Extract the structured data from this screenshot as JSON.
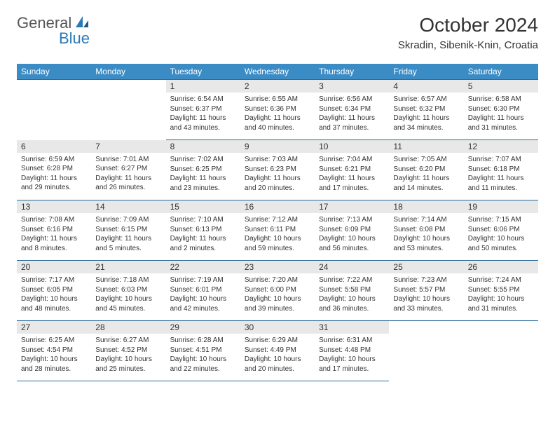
{
  "logo": {
    "text1": "General",
    "text2": "Blue"
  },
  "title": "October 2024",
  "location": "Skradin, Sibenik-Knin, Croatia",
  "colors": {
    "header_bg": "#3b8bc4",
    "header_text": "#ffffff",
    "row_divider": "#2a6a9a",
    "daynum_bg": "#e8e8e8",
    "logo_gray": "#555555",
    "logo_blue": "#2a7ab8"
  },
  "daynames": [
    "Sunday",
    "Monday",
    "Tuesday",
    "Wednesday",
    "Thursday",
    "Friday",
    "Saturday"
  ],
  "weeks": [
    [
      null,
      null,
      {
        "n": "1",
        "sr": "6:54 AM",
        "ss": "6:37 PM",
        "dl": "11 hours and 43 minutes."
      },
      {
        "n": "2",
        "sr": "6:55 AM",
        "ss": "6:36 PM",
        "dl": "11 hours and 40 minutes."
      },
      {
        "n": "3",
        "sr": "6:56 AM",
        "ss": "6:34 PM",
        "dl": "11 hours and 37 minutes."
      },
      {
        "n": "4",
        "sr": "6:57 AM",
        "ss": "6:32 PM",
        "dl": "11 hours and 34 minutes."
      },
      {
        "n": "5",
        "sr": "6:58 AM",
        "ss": "6:30 PM",
        "dl": "11 hours and 31 minutes."
      }
    ],
    [
      {
        "n": "6",
        "sr": "6:59 AM",
        "ss": "6:28 PM",
        "dl": "11 hours and 29 minutes."
      },
      {
        "n": "7",
        "sr": "7:01 AM",
        "ss": "6:27 PM",
        "dl": "11 hours and 26 minutes."
      },
      {
        "n": "8",
        "sr": "7:02 AM",
        "ss": "6:25 PM",
        "dl": "11 hours and 23 minutes."
      },
      {
        "n": "9",
        "sr": "7:03 AM",
        "ss": "6:23 PM",
        "dl": "11 hours and 20 minutes."
      },
      {
        "n": "10",
        "sr": "7:04 AM",
        "ss": "6:21 PM",
        "dl": "11 hours and 17 minutes."
      },
      {
        "n": "11",
        "sr": "7:05 AM",
        "ss": "6:20 PM",
        "dl": "11 hours and 14 minutes."
      },
      {
        "n": "12",
        "sr": "7:07 AM",
        "ss": "6:18 PM",
        "dl": "11 hours and 11 minutes."
      }
    ],
    [
      {
        "n": "13",
        "sr": "7:08 AM",
        "ss": "6:16 PM",
        "dl": "11 hours and 8 minutes."
      },
      {
        "n": "14",
        "sr": "7:09 AM",
        "ss": "6:15 PM",
        "dl": "11 hours and 5 minutes."
      },
      {
        "n": "15",
        "sr": "7:10 AM",
        "ss": "6:13 PM",
        "dl": "11 hours and 2 minutes."
      },
      {
        "n": "16",
        "sr": "7:12 AM",
        "ss": "6:11 PM",
        "dl": "10 hours and 59 minutes."
      },
      {
        "n": "17",
        "sr": "7:13 AM",
        "ss": "6:09 PM",
        "dl": "10 hours and 56 minutes."
      },
      {
        "n": "18",
        "sr": "7:14 AM",
        "ss": "6:08 PM",
        "dl": "10 hours and 53 minutes."
      },
      {
        "n": "19",
        "sr": "7:15 AM",
        "ss": "6:06 PM",
        "dl": "10 hours and 50 minutes."
      }
    ],
    [
      {
        "n": "20",
        "sr": "7:17 AM",
        "ss": "6:05 PM",
        "dl": "10 hours and 48 minutes."
      },
      {
        "n": "21",
        "sr": "7:18 AM",
        "ss": "6:03 PM",
        "dl": "10 hours and 45 minutes."
      },
      {
        "n": "22",
        "sr": "7:19 AM",
        "ss": "6:01 PM",
        "dl": "10 hours and 42 minutes."
      },
      {
        "n": "23",
        "sr": "7:20 AM",
        "ss": "6:00 PM",
        "dl": "10 hours and 39 minutes."
      },
      {
        "n": "24",
        "sr": "7:22 AM",
        "ss": "5:58 PM",
        "dl": "10 hours and 36 minutes."
      },
      {
        "n": "25",
        "sr": "7:23 AM",
        "ss": "5:57 PM",
        "dl": "10 hours and 33 minutes."
      },
      {
        "n": "26",
        "sr": "7:24 AM",
        "ss": "5:55 PM",
        "dl": "10 hours and 31 minutes."
      }
    ],
    [
      {
        "n": "27",
        "sr": "6:25 AM",
        "ss": "4:54 PM",
        "dl": "10 hours and 28 minutes."
      },
      {
        "n": "28",
        "sr": "6:27 AM",
        "ss": "4:52 PM",
        "dl": "10 hours and 25 minutes."
      },
      {
        "n": "29",
        "sr": "6:28 AM",
        "ss": "4:51 PM",
        "dl": "10 hours and 22 minutes."
      },
      {
        "n": "30",
        "sr": "6:29 AM",
        "ss": "4:49 PM",
        "dl": "10 hours and 20 minutes."
      },
      {
        "n": "31",
        "sr": "6:31 AM",
        "ss": "4:48 PM",
        "dl": "10 hours and 17 minutes."
      },
      null,
      null
    ]
  ],
  "labels": {
    "sunrise": "Sunrise:",
    "sunset": "Sunset:",
    "daylight": "Daylight:"
  }
}
